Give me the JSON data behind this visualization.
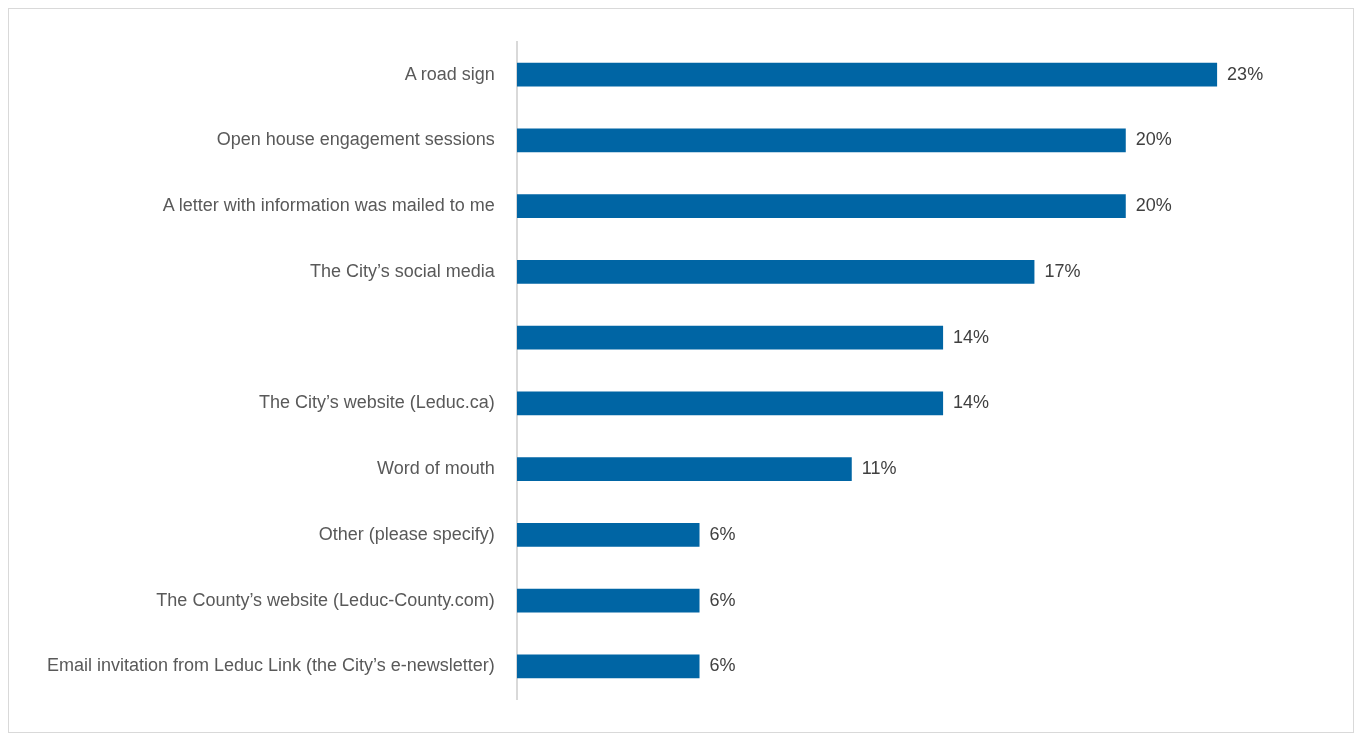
{
  "chart_data": {
    "type": "bar",
    "orientation": "horizontal",
    "categories": [
      "A road sign",
      "Open house engagement sessions",
      "A letter with information was mailed to me",
      "The City’s social media",
      null,
      "The City’s website (Leduc.ca)",
      "Word of mouth",
      "Other (please specify)",
      "The County’s website (Leduc-County.com)",
      "Email invitation from Leduc Link (the City’s e-newsletter)"
    ],
    "values": [
      23,
      20,
      20,
      17,
      14,
      14,
      11,
      6,
      6,
      6
    ],
    "color": "#0065a4",
    "value_labels": [
      "23%",
      "20%",
      "20%",
      "17%",
      "14%",
      "14%",
      "11%",
      "6%",
      "6%",
      "6%"
    ],
    "tick_labels": "y"
  }
}
